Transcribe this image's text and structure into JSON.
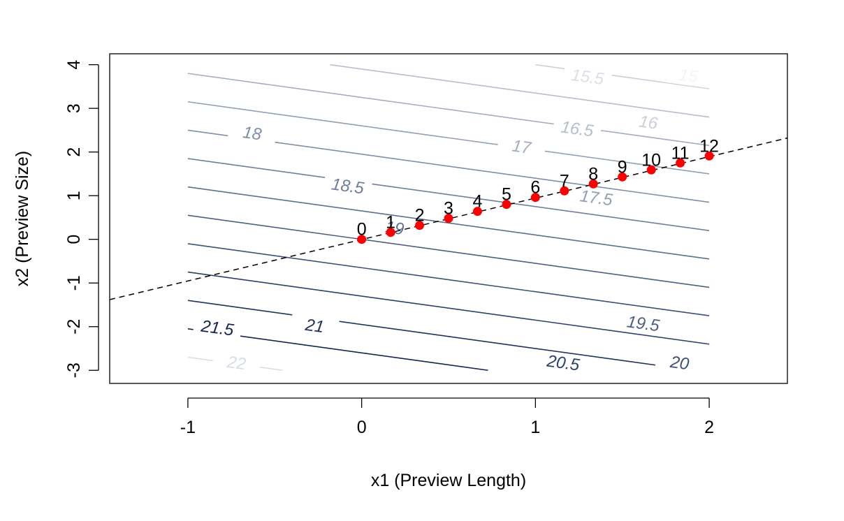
{
  "chart_data": {
    "type": "scatter",
    "xlabel": "x1 (Preview Length)",
    "ylabel": "x2 (Preview Size)",
    "xlim": [
      -1.45,
      2.45
    ],
    "ylim": [
      -3.3,
      4.25
    ],
    "x_ticks": [
      -1,
      0,
      1,
      2
    ],
    "x_tick_labels": [
      "-1",
      "0",
      "1",
      "2"
    ],
    "y_ticks": [
      -3,
      -2,
      -1,
      0,
      1,
      2,
      3,
      4
    ],
    "y_tick_labels": [
      "-3",
      "-2",
      "-1",
      "0",
      "1",
      "2",
      "3",
      "4"
    ],
    "grid": false,
    "contours": {
      "x_range": [
        -1,
        2
      ],
      "y_range": [
        -3,
        4
      ],
      "gradient": {
        "a": 0.55,
        "b": 0.15
      },
      "levels": [
        {
          "value": 15,
          "label": "15",
          "color": "#f2f4f8",
          "label_at": [
            1.88,
            3.75
          ]
        },
        {
          "value": 15.5,
          "label": "15.5",
          "color": "#d9dfe8",
          "label_at": [
            1.3,
            3.72
          ]
        },
        {
          "value": 16,
          "label": "16",
          "color": "#c7cfdb",
          "label_at": [
            1.65,
            2.68
          ]
        },
        {
          "value": 16.5,
          "label": "16.5",
          "color": "#b4bfcd",
          "label_at": [
            1.24,
            2.53
          ]
        },
        {
          "value": 17,
          "label": "17",
          "color": "#a2aec0",
          "label_at": [
            0.92,
            2.12
          ]
        },
        {
          "value": 17.5,
          "label": "17.5",
          "color": "#909fb4",
          "label_at": [
            1.35,
            0.95
          ]
        },
        {
          "value": 18,
          "label": "18",
          "color": "#7e8fa7",
          "label_at": [
            -0.63,
            2.43
          ]
        },
        {
          "value": 18.5,
          "label": "18.5",
          "color": "#6d7f9b",
          "label_at": [
            -0.08,
            1.22
          ]
        },
        {
          "value": 19,
          "label": "19",
          "color": "#5c708e",
          "label_at": [
            0.19,
            0.26
          ]
        },
        {
          "value": 19.5,
          "label": "19.5",
          "color": "#4b6082",
          "label_at": [
            1.62,
            -1.93
          ]
        },
        {
          "value": 20,
          "label": "20",
          "color": "#3b5075",
          "label_at": [
            1.83,
            -2.83
          ]
        },
        {
          "value": 20.5,
          "label": "20.5",
          "color": "#2c4169",
          "label_at": [
            1.16,
            -2.83
          ]
        },
        {
          "value": 21,
          "label": "21",
          "color": "#1e325c",
          "label_at": [
            -0.27,
            -1.98
          ]
        },
        {
          "value": 21.5,
          "label": "21.5",
          "color": "#122450",
          "label_at": [
            -0.83,
            -2.03
          ]
        },
        {
          "value": 22,
          "label": "22",
          "color": "#d8dde5",
          "label_at": [
            -0.72,
            -2.83
          ]
        }
      ]
    },
    "dashed_line": {
      "points": [
        [
          -1.45,
          -1.38
        ],
        [
          2.45,
          2.32
        ]
      ]
    },
    "series": [
      {
        "labels": [
          "0",
          "1",
          "2",
          "3",
          "4",
          "5",
          "6",
          "7",
          "8",
          "9",
          "10",
          "11",
          "12"
        ],
        "x": [
          0,
          0.1667,
          0.3333,
          0.5,
          0.6667,
          0.8333,
          1.0,
          1.1667,
          1.3333,
          1.5,
          1.6667,
          1.8333,
          2.0
        ],
        "y": [
          0,
          0.16,
          0.32,
          0.48,
          0.64,
          0.8,
          0.96,
          1.11,
          1.27,
          1.43,
          1.59,
          1.75,
          1.91
        ],
        "color": "#ff0000"
      }
    ]
  }
}
